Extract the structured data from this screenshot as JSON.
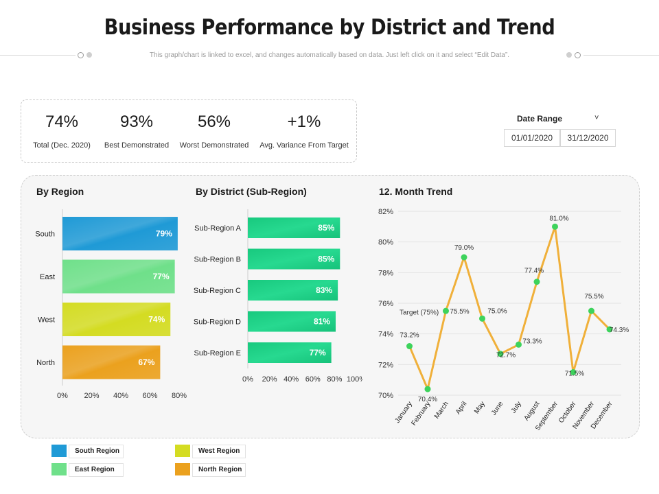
{
  "header": {
    "title": "Business Performance by District and Trend",
    "subtitle": "This graph/chart is linked to excel, and changes automatically  based on data. Just left click on it and select “Edit Data”."
  },
  "kpis": [
    {
      "value": "74%",
      "label": "Total (Dec. 2020)"
    },
    {
      "value": "93%",
      "label": "Best Demonstrated"
    },
    {
      "value": "56%",
      "label": "Worst Demonstrated"
    },
    {
      "value": "+1%",
      "label": "Avg. Variance From Target"
    }
  ],
  "date_range": {
    "label": "Date Range",
    "chevron": "˅",
    "start": "01/01/2020",
    "end": "31/12/2020"
  },
  "legend": [
    {
      "name": "South Region",
      "color": "#1f9ad6"
    },
    {
      "name": "West Region",
      "color": "#d4dc22"
    },
    {
      "name": "East Region",
      "color": "#6fe08a"
    },
    {
      "name": "North Region",
      "color": "#eba11e"
    }
  ],
  "chart_data": [
    {
      "type": "bar",
      "orientation": "horizontal",
      "title": "By Region",
      "categories": [
        "South",
        "East",
        "West",
        "North"
      ],
      "values": [
        79,
        77,
        74,
        67
      ],
      "value_labels": [
        "79%",
        "77%",
        "74%",
        "67%"
      ],
      "colors": [
        "#1f9ad6",
        "#6fe08a",
        "#d4dc22",
        "#eba11e"
      ],
      "xlim": [
        0,
        80
      ],
      "xticks": [
        "0%",
        "20%",
        "40%",
        "60%",
        "80%"
      ]
    },
    {
      "type": "bar",
      "orientation": "horizontal",
      "title": "By District (Sub-Region)",
      "categories": [
        "Sub-Region A",
        "Sub-Region B",
        "Sub-Region C",
        "Sub-Region D",
        "Sub-Region E"
      ],
      "values": [
        85,
        85,
        83,
        81,
        77
      ],
      "value_labels": [
        "85%",
        "85%",
        "83%",
        "81%",
        "77%"
      ],
      "color": "#1fcf86",
      "xlim": [
        0,
        100
      ],
      "xticks": [
        "0%",
        "20%",
        "40%",
        "60%",
        "80%",
        "100%"
      ]
    },
    {
      "type": "line",
      "title": "12. Month Trend",
      "categories": [
        "January",
        "February",
        "March",
        "April",
        "May",
        "June",
        "July",
        "August",
        "September",
        "October",
        "November",
        "December"
      ],
      "values": [
        73.2,
        70.4,
        75.5,
        79.0,
        75.0,
        72.7,
        73.3,
        77.4,
        81.0,
        71.5,
        75.5,
        74.3
      ],
      "value_labels": [
        "73.2%",
        "70.4%",
        "75.5%",
        "79.0%",
        "75.0%",
        "72.7%",
        "73.3%",
        "77.4%",
        "81.0%",
        "71.5%",
        "75.5%",
        "74.3%"
      ],
      "annotation": "Target (75%)",
      "ylim": [
        70,
        82
      ],
      "yticks": [
        "70%",
        "72%",
        "74%",
        "76%",
        "78%",
        "80%",
        "82%"
      ],
      "line_color": "#f0b03a",
      "marker_color": "#3dd35c"
    }
  ]
}
